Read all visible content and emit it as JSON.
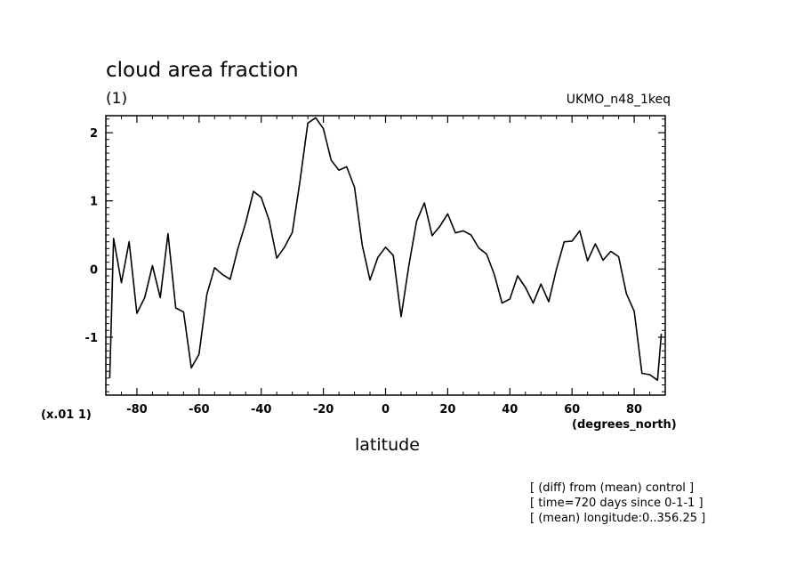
{
  "chart_data": {
    "type": "line",
    "title": "cloud area fraction",
    "units": "(1)",
    "model_label": "UKMO_n48_1keq",
    "scale_label": "(x.01 1)",
    "xlabel": "latitude",
    "xunits": "(degrees_north)",
    "xlim": [
      -90,
      90
    ],
    "ylim": [
      -1.85,
      2.25
    ],
    "xticks": [
      -80,
      -60,
      -40,
      -20,
      0,
      20,
      40,
      60,
      80
    ],
    "xtick_labels": [
      "-80",
      "-60",
      "-40",
      "-20",
      "0",
      "20",
      "40",
      "60",
      "80"
    ],
    "yticks": [
      -1,
      0,
      1,
      2
    ],
    "ytick_labels": [
      "-1",
      "0",
      "1",
      "2"
    ],
    "grid": false,
    "series": [
      {
        "x": [
          -88.75,
          -87.5,
          -85,
          -82.5,
          -80,
          -77.5,
          -75,
          -72.5,
          -70,
          -67.5,
          -65,
          -62.5,
          -60,
          -57.5,
          -55,
          -52.5,
          -50,
          -47.5,
          -45,
          -42.5,
          -40,
          -37.5,
          -35,
          -32.5,
          -30,
          -27.5,
          -25,
          -22.5,
          -20,
          -17.5,
          -15,
          -12.5,
          -10,
          -7.5,
          -5,
          -2.5,
          0,
          2.5,
          5,
          7.5,
          10,
          12.5,
          15,
          17.5,
          20,
          22.5,
          25,
          27.5,
          30,
          32.5,
          35,
          37.5,
          40,
          42.5,
          45,
          47.5,
          50,
          52.5,
          55,
          57.5,
          60,
          62.5,
          65,
          67.5,
          70,
          72.5,
          75,
          77.5,
          80,
          82.5,
          85,
          87.5,
          88.75
        ],
        "y": [
          -1.6,
          0.45,
          -0.2,
          0.4,
          -0.65,
          -0.42,
          0.05,
          -0.42,
          0.52,
          -0.57,
          -0.63,
          -1.45,
          -1.25,
          -0.37,
          0.02,
          -0.08,
          -0.15,
          0.3,
          0.68,
          1.14,
          1.05,
          0.72,
          0.16,
          0.32,
          0.54,
          1.3,
          2.14,
          2.22,
          2.06,
          1.6,
          1.45,
          1.5,
          1.2,
          0.35,
          -0.16,
          0.17,
          0.32,
          0.2,
          -0.7,
          0.05,
          0.7,
          0.97,
          0.49,
          0.63,
          0.81,
          0.53,
          0.56,
          0.5,
          0.31,
          0.22,
          -0.08,
          -0.5,
          -0.44,
          -0.1,
          -0.27,
          -0.5,
          -0.22,
          -0.48,
          0.0,
          0.4,
          0.41,
          0.56,
          0.12,
          0.37,
          0.13,
          0.26,
          0.18,
          -0.36,
          -0.62,
          -1.53,
          -1.55,
          -1.63,
          -0.95
        ]
      }
    ]
  },
  "notes": [
    "[ (diff) from (mean) control ]",
    "[ time=720 days since 0-1-1 ]",
    "[ (mean) longitude:0..356.25 ]"
  ]
}
